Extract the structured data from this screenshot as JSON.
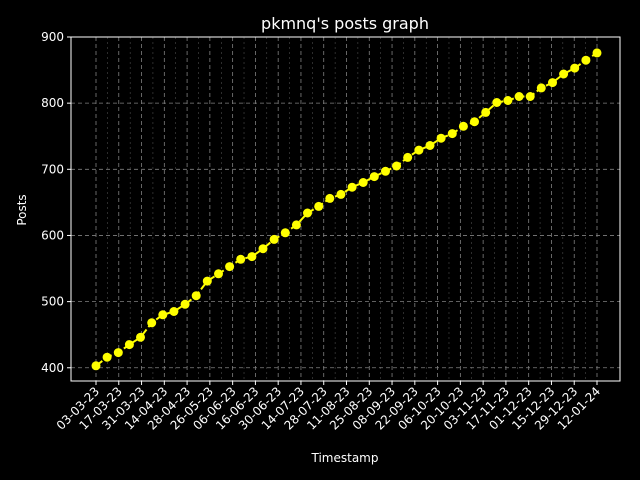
{
  "chart_data": {
    "type": "line",
    "title": "pkmnq's posts graph",
    "xlabel": "Timestamp",
    "ylabel": "Posts",
    "ylim": [
      380,
      900
    ],
    "y_ticks": [
      400,
      500,
      600,
      700,
      800,
      900
    ],
    "x_tick_labels": [
      "03-03-23",
      "17-03-23",
      "31-03-23",
      "14-04-23",
      "28-04-23",
      "26-05-23",
      "06-06-23",
      "16-06-23",
      "30-06-23",
      "14-07-23",
      "28-07-23",
      "11-08-23",
      "25-08-23",
      "08-09-23",
      "22-09-23",
      "06-10-23",
      "20-10-23",
      "03-11-23",
      "17-11-23",
      "01-12-23",
      "15-12-23",
      "29-12-23",
      "12-01-24"
    ],
    "grid": true,
    "background_color": "#000000",
    "text_color": "#ffffff",
    "grid_color": "#808080",
    "series": [
      {
        "color": "#ffff00",
        "marker": "circle",
        "values": [
          403,
          416,
          423,
          435,
          446,
          468,
          480,
          485,
          496,
          509,
          531,
          542,
          553,
          564,
          568,
          580,
          594,
          604,
          616,
          634,
          644,
          656,
          662,
          673,
          680,
          689,
          697,
          705,
          718,
          729,
          736,
          747,
          754,
          765,
          772,
          786,
          801,
          804,
          810,
          810,
          823,
          831,
          844,
          853,
          865,
          876
        ]
      }
    ]
  }
}
